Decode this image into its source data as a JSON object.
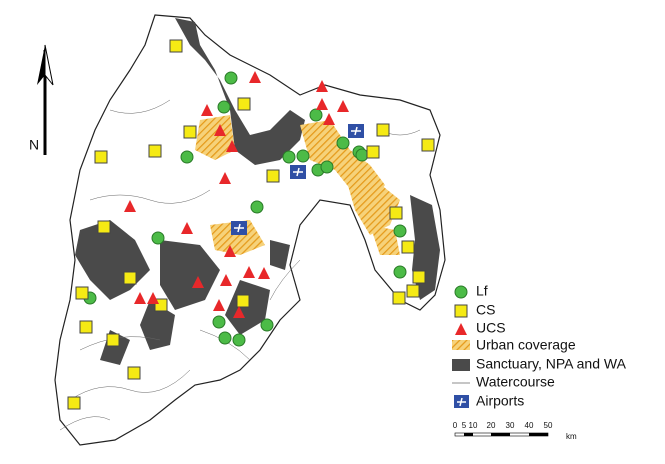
{
  "north_arrow": {
    "label": "N"
  },
  "legend": {
    "items": [
      "Lf",
      "CS",
      "UCS",
      "Urban coverage",
      "Sanctuary, NPA and WA",
      "Watercourse",
      "Airports"
    ]
  },
  "scale_bar": {
    "ticks": [
      0,
      5,
      10,
      20,
      30,
      40,
      50
    ],
    "unit": "km"
  }
}
